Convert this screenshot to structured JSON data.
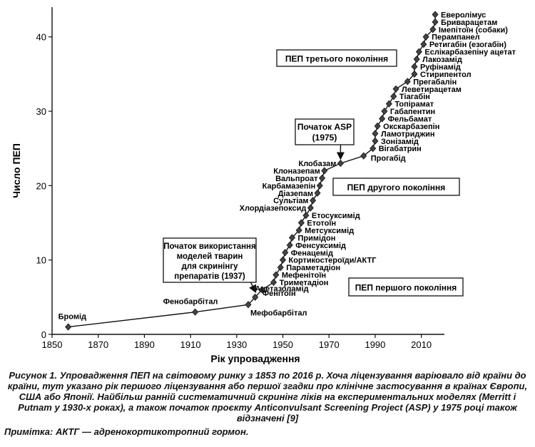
{
  "chart_data": {
    "type": "line",
    "xlabel": "Рік упровадження",
    "ylabel": "Число ПЕП",
    "xlim": [
      1850,
      2020
    ],
    "ylim": [
      0,
      44
    ],
    "xticks": [
      1850,
      1870,
      1890,
      1910,
      1930,
      1950,
      1970,
      1990,
      2010
    ],
    "yticks": [
      0,
      10,
      20,
      30,
      40
    ],
    "grid": false,
    "points": [
      {
        "x": 1857,
        "y": 1,
        "label": "Бромід"
      },
      {
        "x": 1912,
        "y": 3,
        "label": "Фенобарбітал"
      },
      {
        "x": 1935,
        "y": 4,
        "label": "Мефобарбітал"
      },
      {
        "x": 1938,
        "y": 5,
        "label": "Фенітоїн"
      },
      {
        "x": 1941,
        "y": 6,
        "label": "Ацетазоламід"
      },
      {
        "x": 1946,
        "y": 7,
        "label": "Триметадіон"
      },
      {
        "x": 1947,
        "y": 8,
        "label": "Мефенітоїн"
      },
      {
        "x": 1949,
        "y": 9,
        "label": "Параметадіон"
      },
      {
        "x": 1950,
        "y": 10,
        "label": "Кортикостероїди/АКТГ"
      },
      {
        "x": 1951,
        "y": 11,
        "label": "Фенацемід"
      },
      {
        "x": 1953,
        "y": 12,
        "label": "Фенсуксимід"
      },
      {
        "x": 1954,
        "y": 13,
        "label": "Примідон"
      },
      {
        "x": 1957,
        "y": 14,
        "label": "Метсуксимід"
      },
      {
        "x": 1958,
        "y": 15,
        "label": "Етотоїн"
      },
      {
        "x": 1960,
        "y": 16,
        "label": "Етосуксимід"
      },
      {
        "x": 1962,
        "y": 17,
        "label": "Хлордіазепоксид"
      },
      {
        "x": 1963,
        "y": 18,
        "label": "Сультіам"
      },
      {
        "x": 1965,
        "y": 19,
        "label": "Діазепам"
      },
      {
        "x": 1966,
        "y": 20,
        "label": "Карбамазепін"
      },
      {
        "x": 1967,
        "y": 21,
        "label": "Вальпроат"
      },
      {
        "x": 1968,
        "y": 22,
        "label": "Клоназепам"
      },
      {
        "x": 1975,
        "y": 23,
        "label": "Клобазам"
      },
      {
        "x": 1985,
        "y": 24,
        "label": "Прогабід"
      },
      {
        "x": 1989,
        "y": 25,
        "label": "Вігабатрин"
      },
      {
        "x": 1990,
        "y": 26,
        "label": "Зонізамід"
      },
      {
        "x": 1990,
        "y": 27,
        "label": "Ламотриджин"
      },
      {
        "x": 1991,
        "y": 28,
        "label": "Окскарбазепін"
      },
      {
        "x": 1993,
        "y": 29,
        "label": "Фельбамат"
      },
      {
        "x": 1994,
        "y": 30,
        "label": "Габапентин"
      },
      {
        "x": 1996,
        "y": 31,
        "label": "Топірамат"
      },
      {
        "x": 1998,
        "y": 32,
        "label": "Тіагабін"
      },
      {
        "x": 1999,
        "y": 33,
        "label": "Леветирацетам"
      },
      {
        "x": 2004,
        "y": 34,
        "label": "Прегабалін"
      },
      {
        "x": 2007,
        "y": 35,
        "label": "Стирипентол"
      },
      {
        "x": 2007,
        "y": 36,
        "label": "Руфінамід"
      },
      {
        "x": 2008,
        "y": 37,
        "label": "Лакозамід"
      },
      {
        "x": 2009,
        "y": 38,
        "label": "Еслікарбазепіну ацетат"
      },
      {
        "x": 2011,
        "y": 39,
        "label": "Ретигабін (езогабін)"
      },
      {
        "x": 2012,
        "y": 40,
        "label": "Перампанел"
      },
      {
        "x": 2015,
        "y": 41,
        "label": "Імепітоїн (собаки)"
      },
      {
        "x": 2016,
        "y": 42,
        "label": "Бриварацетам"
      },
      {
        "x": 2016,
        "y": 43,
        "label": "Еверолімус"
      }
    ],
    "annotations": [
      {
        "text": "ПЕП третього покоління"
      },
      {
        "text": "ПЕП другого покоління"
      },
      {
        "text": "ПЕП першого покоління"
      },
      {
        "lines": [
          "Початок ASP",
          "(1975)"
        ],
        "x": 1975,
        "y": 23
      },
      {
        "lines": [
          "Початок використання",
          "моделей тварин",
          "для скринінгу",
          "препаратів (1937)"
        ],
        "x": 1937,
        "y": 5
      }
    ]
  },
  "caption": "Рисунок 1. Упровадження ПЕП на світовому ринку з 1853 по 2016 р. Хоча ліцензування варіювало від країни до країни, тут указано рік першого ліцензування або першої згадки про клінічне застосування в країнах Європи, США або Японії. Найбільш ранній систематичний скринінг ліків на експериментальних моделях (Merritt і Putnam у 1930-х роках), а також початок проєкту Anticonvulsant Screening Project (ASP) у 1975 році також відзначені [9]",
  "note": "Примітка: АКТГ — адренокортикотропний гормон."
}
